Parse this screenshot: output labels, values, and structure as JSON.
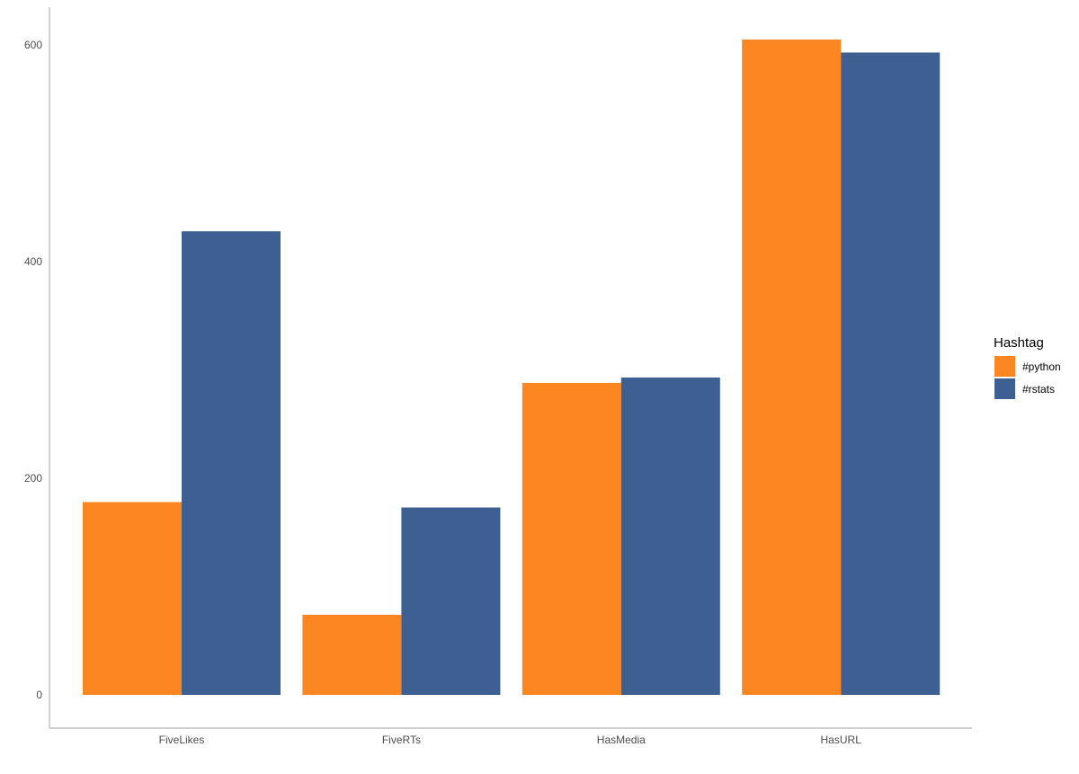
{
  "chart_data": {
    "type": "bar",
    "title": "",
    "xlabel": "",
    "ylabel": "",
    "categories": [
      "FiveLikes",
      "FiveRTs",
      "HasMedia",
      "HasURL"
    ],
    "series": [
      {
        "name": "#python",
        "color": "#FC8621",
        "values": [
          178,
          74,
          288,
          605
        ]
      },
      {
        "name": "#rstats",
        "color": "#3D5F91",
        "values": [
          428,
          173,
          293,
          593
        ]
      }
    ],
    "yticks": [
      0,
      200,
      400,
      600
    ],
    "ytick_labels": [
      "0",
      "200",
      "400",
      "600"
    ],
    "ylim": [
      -30,
      635
    ],
    "grid": false,
    "legend": {
      "title": "Hashtag",
      "placement": "right"
    }
  }
}
